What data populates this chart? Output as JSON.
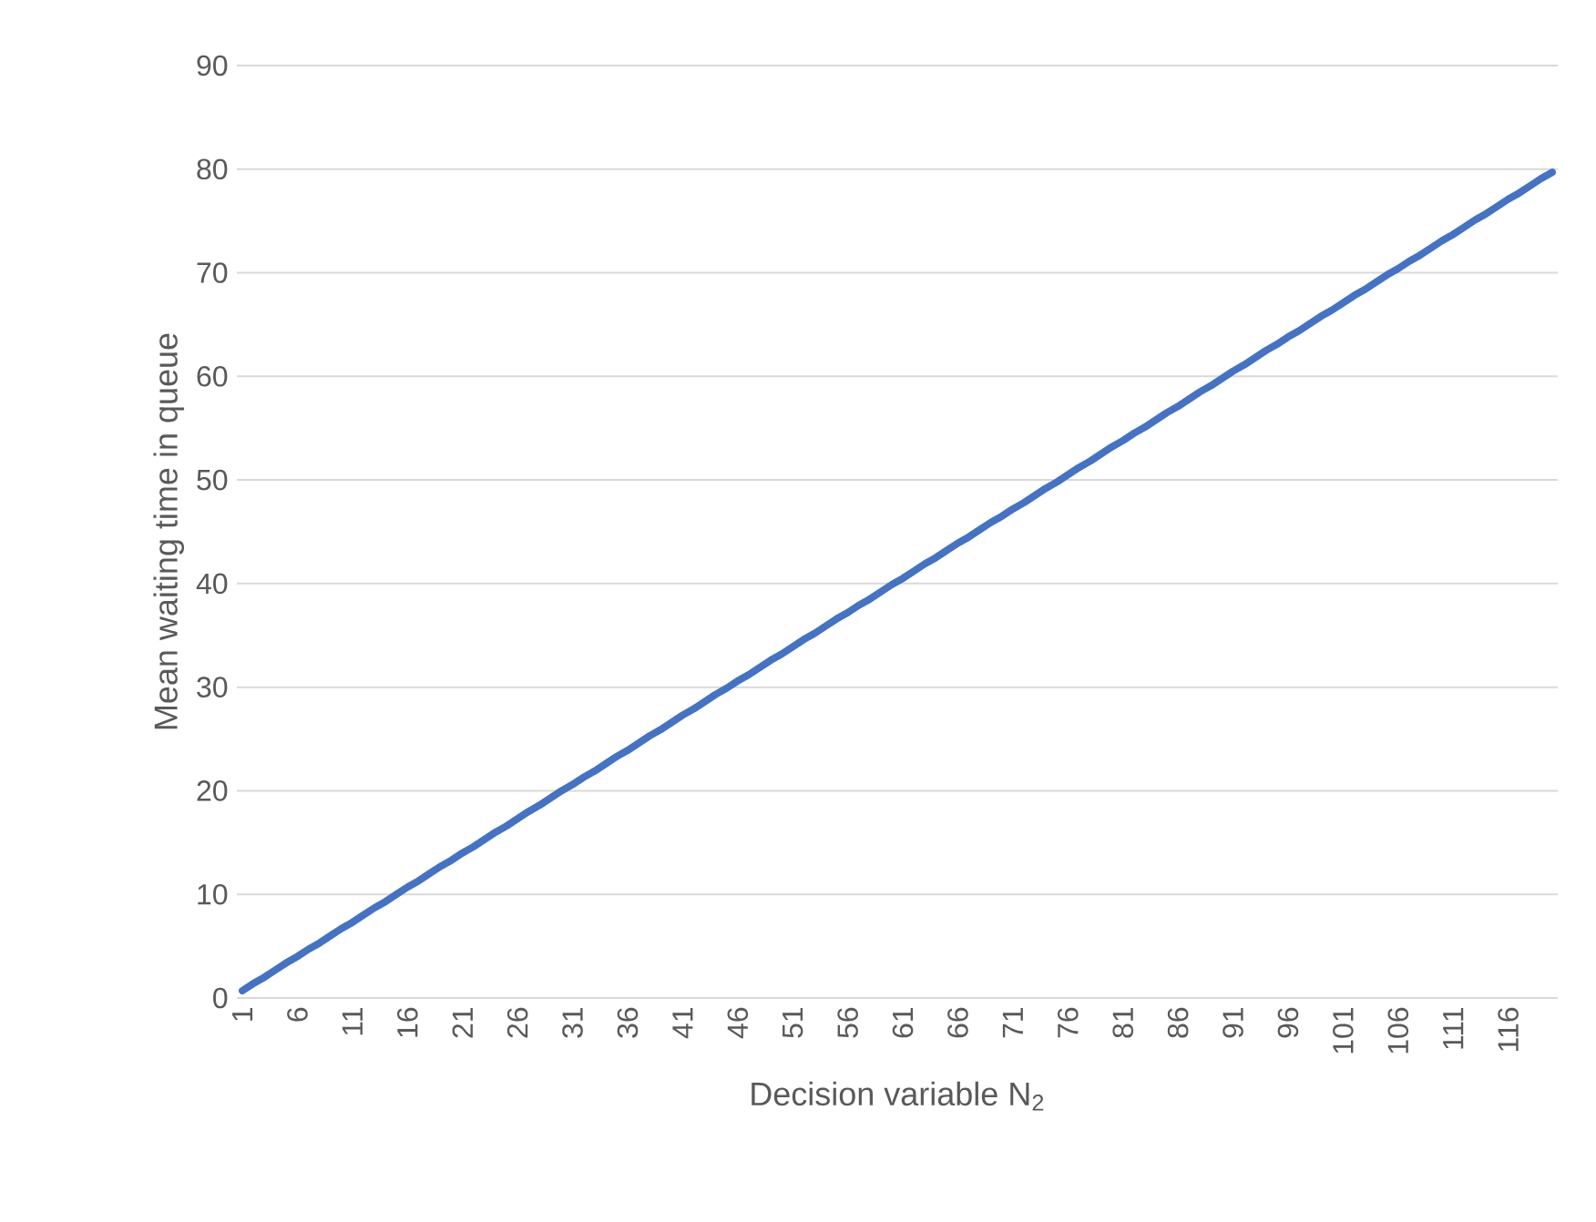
{
  "chart_data": {
    "type": "line",
    "xlabel": "Decision variable N$_{2}$",
    "ylabel": "Mean waiting time in queue",
    "categories": [
      "1",
      null,
      null,
      null,
      null,
      "6",
      null,
      null,
      null,
      null,
      "11",
      null,
      null,
      null,
      null,
      "16",
      null,
      null,
      null,
      null,
      "21",
      null,
      null,
      null,
      null,
      "26",
      null,
      null,
      null,
      null,
      "31",
      null,
      null,
      null,
      null,
      "36",
      null,
      null,
      null,
      null,
      "41",
      null,
      null,
      null,
      null,
      "46",
      null,
      null,
      null,
      null,
      "51",
      null,
      null,
      null,
      null,
      "56",
      null,
      null,
      null,
      null,
      "61",
      null,
      null,
      null,
      null,
      "66",
      null,
      null,
      null,
      null,
      "71",
      null,
      null,
      null,
      null,
      "76",
      null,
      null,
      null,
      null,
      "81",
      null,
      null,
      null,
      null,
      "86",
      null,
      null,
      null,
      null,
      "91",
      null,
      null,
      null,
      null,
      "96",
      null,
      null,
      null,
      null,
      "101",
      null,
      null,
      null,
      null,
      "106",
      null,
      null,
      null,
      null,
      "111",
      null,
      null,
      null,
      null,
      "116",
      null,
      null,
      null,
      null
    ],
    "series": [
      {
        "color": "#4472c4",
        "values": [
          0.7,
          1.4,
          2.0,
          2.7,
          3.4,
          4.0,
          4.7,
          5.3,
          6.0,
          6.7,
          7.3,
          8.0,
          8.7,
          9.3,
          10.0,
          10.7,
          11.3,
          12.0,
          12.7,
          13.3,
          14.0,
          14.6,
          15.3,
          16.0,
          16.6,
          17.3,
          18.0,
          18.6,
          19.3,
          20.0,
          20.6,
          21.3,
          21.9,
          22.6,
          23.3,
          23.9,
          24.6,
          25.3,
          25.9,
          26.6,
          27.3,
          27.9,
          28.6,
          29.3,
          29.9,
          30.6,
          31.2,
          31.9,
          32.6,
          33.2,
          33.9,
          34.6,
          35.2,
          35.9,
          36.6,
          37.2,
          37.9,
          38.5,
          39.2,
          39.9,
          40.5,
          41.2,
          41.9,
          42.5,
          43.2,
          43.9,
          44.5,
          45.2,
          45.9,
          46.5,
          47.2,
          47.8,
          48.5,
          49.2,
          49.8,
          50.5,
          51.2,
          51.8,
          52.5,
          53.2,
          53.8,
          54.5,
          55.1,
          55.8,
          56.5,
          57.1,
          57.8,
          58.5,
          59.1,
          59.8,
          60.5,
          61.1,
          61.8,
          62.5,
          63.1,
          63.8,
          64.4,
          65.1,
          65.8,
          66.4,
          67.1,
          67.8,
          68.4,
          69.1,
          69.8,
          70.4,
          71.1,
          71.7,
          72.4,
          73.1,
          73.7,
          74.4,
          75.1,
          75.7,
          76.4,
          77.1,
          77.7,
          78.4,
          79.1,
          79.7
        ]
      }
    ],
    "ylim": [
      0,
      90
    ],
    "yticks": [
      0,
      10,
      20,
      30,
      40,
      50,
      60,
      70,
      80,
      90
    ],
    "grid": "y"
  }
}
